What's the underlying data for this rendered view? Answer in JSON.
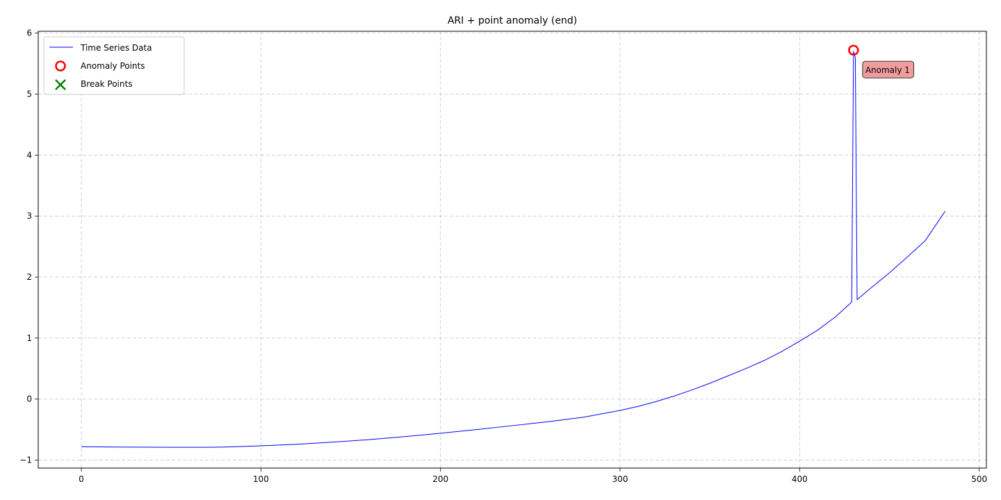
{
  "chart_data": {
    "type": "line",
    "title": "ARI + point anomaly (end)",
    "xlabel": "",
    "ylabel": "",
    "xlim": [
      -24,
      504
    ],
    "ylim": [
      -1.13,
      6.03
    ],
    "xticks": [
      0,
      100,
      200,
      300,
      400,
      500
    ],
    "yticks": [
      -1,
      0,
      1,
      2,
      3,
      4,
      5,
      6
    ],
    "xtick_labels": [
      "0",
      "100",
      "200",
      "300",
      "400",
      "500"
    ],
    "ytick_labels": [
      "−1",
      "0",
      "1",
      "2",
      "3",
      "4",
      "5",
      "6"
    ],
    "grid": true,
    "legend_position": "top-left",
    "series": [
      {
        "name": "Time Series Data",
        "color": "#0000ff",
        "points": [
          [
            0,
            -0.78
          ],
          [
            20,
            -0.785
          ],
          [
            40,
            -0.788
          ],
          [
            60,
            -0.79
          ],
          [
            70,
            -0.79
          ],
          [
            80,
            -0.785
          ],
          [
            100,
            -0.765
          ],
          [
            120,
            -0.74
          ],
          [
            140,
            -0.705
          ],
          [
            160,
            -0.665
          ],
          [
            180,
            -0.615
          ],
          [
            200,
            -0.56
          ],
          [
            220,
            -0.5
          ],
          [
            240,
            -0.435
          ],
          [
            260,
            -0.37
          ],
          [
            280,
            -0.295
          ],
          [
            300,
            -0.185
          ],
          [
            310,
            -0.12
          ],
          [
            320,
            -0.04
          ],
          [
            330,
            0.05
          ],
          [
            340,
            0.15
          ],
          [
            350,
            0.26
          ],
          [
            360,
            0.38
          ],
          [
            370,
            0.5
          ],
          [
            380,
            0.63
          ],
          [
            390,
            0.78
          ],
          [
            400,
            0.95
          ],
          [
            410,
            1.13
          ],
          [
            420,
            1.35
          ],
          [
            429,
            1.59
          ],
          [
            430,
            5.7
          ],
          [
            431,
            5.6
          ],
          [
            432,
            1.63
          ],
          [
            440,
            1.83
          ],
          [
            450,
            2.07
          ],
          [
            460,
            2.33
          ],
          [
            470,
            2.6
          ],
          [
            481,
            3.08
          ]
        ]
      }
    ],
    "anomaly_points": {
      "name": "Anomaly Points",
      "color": "#ff0000",
      "points": [
        [
          430,
          5.72
        ]
      ]
    },
    "break_points": {
      "name": "Break Points",
      "color": "#008000",
      "points": []
    },
    "annotations": [
      {
        "text": "Anomaly 1",
        "x": 430,
        "y": 5.72,
        "bg": "#f09c9c"
      }
    ]
  }
}
